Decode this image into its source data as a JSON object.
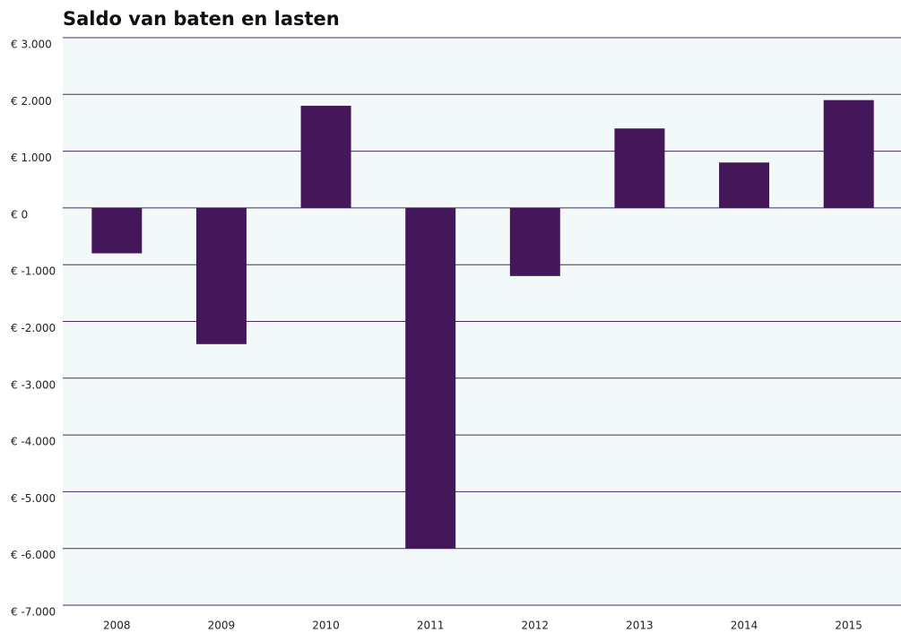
{
  "chart_data": {
    "type": "bar",
    "title": "Saldo van baten en lasten",
    "categories": [
      "2008",
      "2009",
      "2010",
      "2011",
      "2012",
      "2013",
      "2014",
      "2015"
    ],
    "values": [
      -800,
      -2400,
      1800,
      -6000,
      -1200,
      1400,
      800,
      1900
    ],
    "color": "#44175a",
    "ylim": [
      -7000,
      3000
    ],
    "yticks": [
      {
        "value": 3000,
        "label": "€ 3.000"
      },
      {
        "value": 2000,
        "label": "€ 2.000"
      },
      {
        "value": 1000,
        "label": "€ 1.000"
      },
      {
        "value": 0,
        "label": "€ 0"
      },
      {
        "value": -1000,
        "label": "€ -1.000"
      },
      {
        "value": -2000,
        "label": "€ -2.000"
      },
      {
        "value": -3000,
        "label": "€ -3.000"
      },
      {
        "value": -4000,
        "label": "€ -4.000"
      },
      {
        "value": -5000,
        "label": "€ -5.000"
      },
      {
        "value": -6000,
        "label": "€ -6.000"
      },
      {
        "value": -7000,
        "label": "€ -7.000"
      }
    ],
    "grid": true
  }
}
